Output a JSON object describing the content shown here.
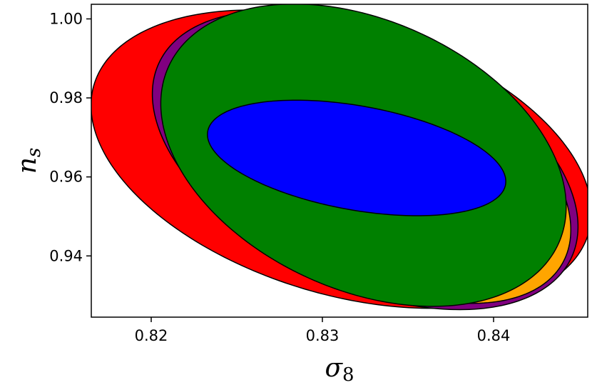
{
  "chart_data": {
    "type": "contour",
    "title": "",
    "xlabel": "σ8",
    "ylabel": "ns",
    "xlabel_parts": {
      "base": "σ",
      "sub": "8"
    },
    "ylabel_parts": {
      "base": "n",
      "sub": "s"
    },
    "xlim": [
      0.8165,
      0.8455
    ],
    "ylim": [
      0.9245,
      1.0037
    ],
    "x_ticks": [
      0.82,
      0.83,
      0.84
    ],
    "x_tick_labels": [
      "0.82",
      "0.83",
      "0.84"
    ],
    "y_ticks": [
      0.94,
      0.96,
      0.98,
      1.0
    ],
    "y_tick_labels": [
      "0.94",
      "0.96",
      "0.98",
      "1.00"
    ],
    "grid": false,
    "ellipses": [
      {
        "color": "#ff0000",
        "center": [
          0.8311,
          0.9645
        ],
        "semi_major_x": 0.0144,
        "semi_major_y": -0.0194,
        "semi_minor_x": 0.0025,
        "semi_minor_y": 0.0324
      },
      {
        "color": "#800080",
        "center": [
          0.8325,
          0.9642
        ],
        "semi_major_x": 0.0122,
        "semi_major_y": -0.023,
        "semi_minor_x": 0.0024,
        "semi_minor_y": 0.03
      },
      {
        "color": "#ffa500",
        "center": [
          0.833,
          0.965
        ],
        "semi_major_x": 0.0113,
        "semi_major_y": -0.0242,
        "semi_minor_x": 0.0022,
        "semi_minor_y": 0.028
      },
      {
        "color": "#008000",
        "center": [
          0.8324,
          0.9655
        ],
        "semi_major_x": 0.0114,
        "semi_major_y": -0.0223,
        "semi_minor_x": 0.0032,
        "semi_minor_y": 0.0311
      },
      {
        "color": "#0000ff",
        "center": [
          0.832,
          0.9648
        ],
        "semi_major_x": 0.0087,
        "semi_major_y": -0.0067,
        "semi_minor_x": 0.0005,
        "semi_minor_y": 0.013
      }
    ]
  }
}
